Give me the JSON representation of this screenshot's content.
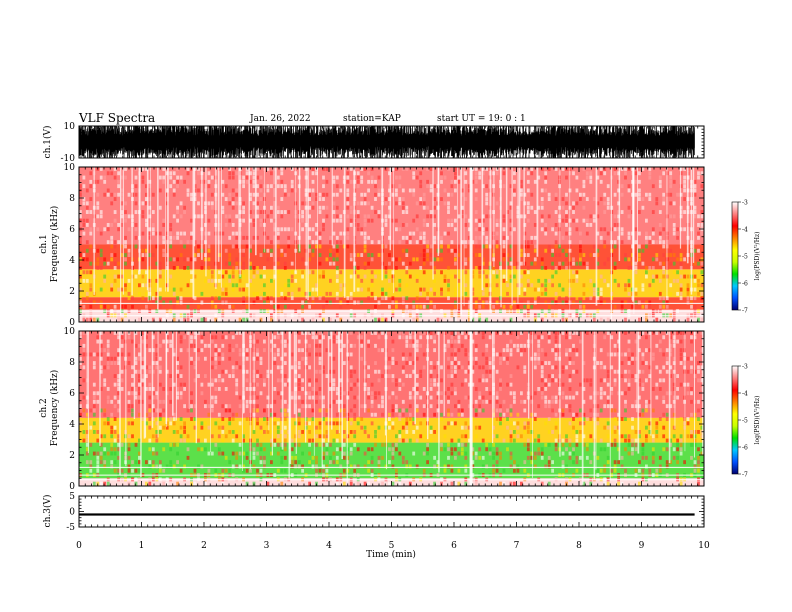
{
  "header": {
    "title": "VLF Spectra",
    "date": "Jan. 26, 2022",
    "station": "station=KAP",
    "start_ut": "start UT =   19: 0  : 1"
  },
  "chart_data": [
    {
      "type": "line",
      "name": "ch1-waveform",
      "ylabel": "ch.1(V)",
      "ylim": [
        -10,
        10
      ],
      "ytick_labels": [
        "10",
        "-10"
      ],
      "xlim": [
        0,
        10
      ],
      "x_coverage_max": 9.85
    },
    {
      "type": "heatmap",
      "name": "ch1-spectrogram",
      "ylabel": "ch.1\nFrequency (kHz)",
      "ylim": [
        0,
        10
      ],
      "ytick_labels": [
        "0",
        "2",
        "4",
        "6",
        "8",
        "10"
      ],
      "xlim": [
        0,
        10
      ],
      "dominant_bands_khz": [
        [
          0.8,
          1.6
        ],
        [
          1.6,
          3.4
        ],
        [
          3.4,
          5.0
        ],
        [
          5.0,
          10
        ]
      ],
      "band_colors": [
        "#ff3a1a",
        "#ffd000",
        "#ff3a1a",
        "#ff7070"
      ],
      "bright_vertical_gap_min": 6.25
    },
    {
      "type": "heatmap",
      "name": "ch2-spectrogram",
      "ylabel": "ch.2\nFrequency (kHz)",
      "ylim": [
        0,
        10
      ],
      "ytick_labels": [
        "0",
        "2",
        "4",
        "6",
        "8",
        "10"
      ],
      "xlim": [
        0,
        10
      ],
      "dominant_bands_khz": [
        [
          0.5,
          2.8
        ],
        [
          2.8,
          4.4
        ],
        [
          4.4,
          10
        ]
      ],
      "band_colors": [
        "#40e030",
        "#ffd000",
        "#ff6060"
      ],
      "bright_vertical_gap_min": 6.25
    },
    {
      "type": "line",
      "name": "ch3-waveform",
      "ylabel": "ch.3(V)",
      "ylim": [
        -5,
        5
      ],
      "ytick_labels": [
        "5",
        "0",
        "-5"
      ],
      "xlim": [
        0,
        10
      ],
      "x_coverage_max": 9.85,
      "band_level_v": [
        -1.3,
        -0.6
      ]
    }
  ],
  "x_axis": {
    "label": "Time (min)",
    "ticks": [
      0,
      1,
      2,
      3,
      4,
      5,
      6,
      7,
      8,
      9,
      10
    ]
  },
  "colorbar": {
    "label": "log(PSD)(V²/Hz)",
    "range": [
      -7,
      -3
    ],
    "ticks": [
      "-3",
      "-4",
      "-5",
      "-6",
      "-7"
    ],
    "stops": [
      "#000070",
      "#0050ff",
      "#00c8ff",
      "#00e000",
      "#c8ff00",
      "#ffff00",
      "#ff8000",
      "#ff0000",
      "#ff8080",
      "#ffffff"
    ]
  }
}
